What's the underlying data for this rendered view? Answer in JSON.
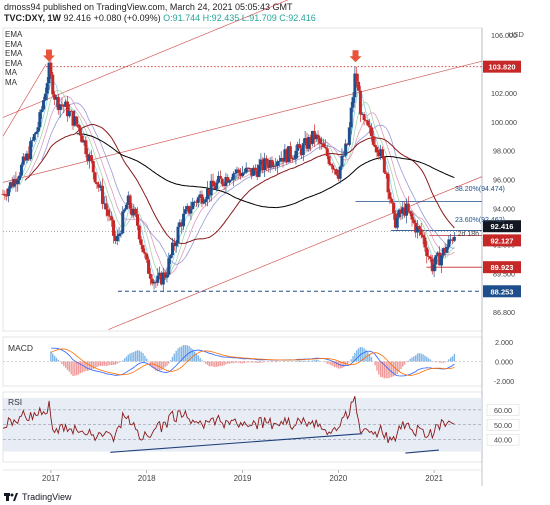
{
  "header": {
    "line1": "dmoss94 published on TradingView.com, March 24, 2021 05:05:43 GMT",
    "symbol": "TVC:DXY, 1W",
    "price": "92.416",
    "change": "+0.080 (+0.09%)",
    "ohlc": "O:91.744 H:92.435 L:91.709 C:92.416"
  },
  "legend": [
    "EMA",
    "EMA",
    "EMA",
    "EMA",
    "MA",
    "MA"
  ],
  "axis": {
    "currency": "USD",
    "ticks": [
      "106.000",
      "104.000",
      "102.000",
      "100.000",
      "98.000",
      "96.000",
      "94.000",
      "92.000",
      "91.500",
      "89.500",
      "86.800"
    ],
    "x_labels": [
      "2017",
      "2018",
      "2019",
      "2020",
      "2021"
    ],
    "countdown": "2d 18h"
  },
  "price_tags": [
    {
      "text": "103.820",
      "color": "#c62828"
    },
    {
      "text": "92.416",
      "color": "#131722"
    },
    {
      "text": "92.127",
      "color": "#c62828"
    },
    {
      "text": "89.923",
      "color": "#c62828"
    },
    {
      "text": "88.253",
      "color": "#1e4f8c"
    }
  ],
  "fib_labels": [
    "38.20%(94.474)",
    "23.60%(92.462)"
  ],
  "macd": {
    "label": "MACD",
    "ticks": [
      "2.000",
      "0.000",
      "-2.000"
    ]
  },
  "rsi": {
    "label": "RSI",
    "ticks": [
      "60.00",
      "50.00",
      "40.00"
    ]
  },
  "footer": {
    "brand": "TradingView"
  },
  "colors": {
    "up": "#1e4f8c",
    "down": "#c62828",
    "ma200": "#000000",
    "ma100": "#8b1a1a",
    "band": "#dfe5f2",
    "arrow": "#e8533a"
  },
  "chart_data": {
    "type": "candlestick",
    "title": "TVC:DXY, 1W",
    "ylabel": "USD",
    "ylim": [
      85.5,
      106.5
    ],
    "x_range": [
      2016.5,
      2021.5
    ],
    "anchors": [
      {
        "t": 2016.5,
        "v": 95.0
      },
      {
        "t": 2016.62,
        "v": 96.0
      },
      {
        "t": 2016.75,
        "v": 97.5
      },
      {
        "t": 2016.88,
        "v": 100.0
      },
      {
        "t": 2016.98,
        "v": 103.6
      },
      {
        "t": 2017.05,
        "v": 101.5
      },
      {
        "t": 2017.15,
        "v": 101.0
      },
      {
        "t": 2017.3,
        "v": 99.5
      },
      {
        "t": 2017.45,
        "v": 96.5
      },
      {
        "t": 2017.6,
        "v": 93.5
      },
      {
        "t": 2017.68,
        "v": 91.5
      },
      {
        "t": 2017.8,
        "v": 94.5
      },
      {
        "t": 2017.9,
        "v": 93.0
      },
      {
        "t": 2018.0,
        "v": 90.0
      },
      {
        "t": 2018.1,
        "v": 88.8
      },
      {
        "t": 2018.2,
        "v": 89.5
      },
      {
        "t": 2018.35,
        "v": 93.0
      },
      {
        "t": 2018.5,
        "v": 94.5
      },
      {
        "t": 2018.7,
        "v": 95.5
      },
      {
        "t": 2018.9,
        "v": 96.5
      },
      {
        "t": 2019.1,
        "v": 96.5
      },
      {
        "t": 2019.35,
        "v": 97.5
      },
      {
        "t": 2019.6,
        "v": 98.0
      },
      {
        "t": 2019.75,
        "v": 99.0
      },
      {
        "t": 2019.9,
        "v": 97.5
      },
      {
        "t": 2020.0,
        "v": 96.5
      },
      {
        "t": 2020.1,
        "v": 98.5
      },
      {
        "t": 2020.18,
        "v": 103.5
      },
      {
        "t": 2020.25,
        "v": 100.0
      },
      {
        "t": 2020.4,
        "v": 98.5
      },
      {
        "t": 2020.5,
        "v": 96.5
      },
      {
        "t": 2020.58,
        "v": 93.0
      },
      {
        "t": 2020.7,
        "v": 94.0
      },
      {
        "t": 2020.78,
        "v": 93.0
      },
      {
        "t": 2020.88,
        "v": 92.0
      },
      {
        "t": 2020.98,
        "v": 90.0
      },
      {
        "t": 2021.05,
        "v": 90.5
      },
      {
        "t": 2021.15,
        "v": 91.5
      },
      {
        "t": 2021.22,
        "v": 92.4
      }
    ],
    "levels": [
      {
        "value": 103.82,
        "style": "dotted"
      },
      {
        "value": 92.127,
        "style": "solid"
      },
      {
        "value": 89.923,
        "style": "solid"
      },
      {
        "value": 88.253,
        "style": "dashed"
      }
    ],
    "fib": [
      {
        "ratio": "38.20%",
        "value": 94.474
      },
      {
        "ratio": "23.60%",
        "value": 92.462
      }
    ],
    "macd_ylim": [
      -2.5,
      2.5
    ],
    "rsi_ylim": [
      25,
      72
    ],
    "rsi_levels": [
      60,
      50,
      40
    ]
  }
}
